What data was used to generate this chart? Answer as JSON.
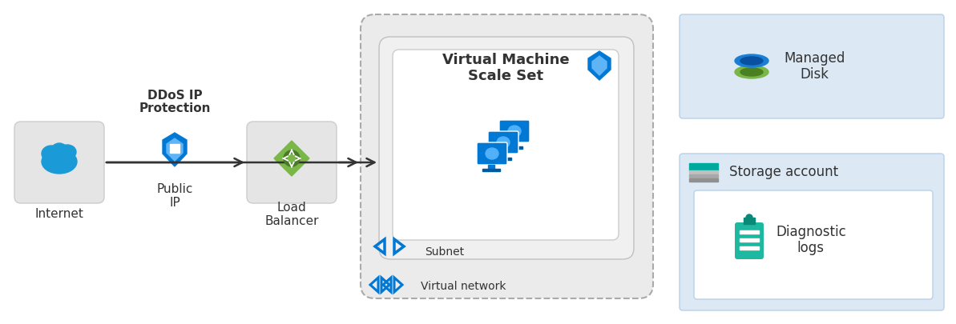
{
  "bg_color": "#ffffff",
  "light_blue_bg": "#dce9f5",
  "grey_box_color": "#e5e5e5",
  "vnet_fill": "#ebebeb",
  "subnet_fill": "#f0f0f0",
  "vmss_fill": "#ffffff",
  "arrow_color": "#333333",
  "text_color": "#333333",
  "dashed_border": "#aaaaaa",
  "blue_icon": "#1a9bd7",
  "ddos_blue": "#0078d4",
  "ddos_light": "#5eb4f5",
  "green_lb": "#7ab648",
  "green_lb_dark": "#4a7a28",
  "vm_blue": "#0078d4",
  "vm_light": "#50b0f8",
  "teal_diag": "#1eb8a0",
  "teal_diag_dark": "#0a8878",
  "managed_blue": "#1a7fd4",
  "managed_blue_dark": "#0a50a0",
  "managed_green": "#7ab648",
  "managed_green_dark": "#4a8020",
  "storage_teal": "#00a99d",
  "label_internet": "Internet",
  "label_ddos_line1": "DDoS IP",
  "label_ddos_line2": "Protection",
  "label_public_ip": "Public\nIP",
  "label_load_balancer": "Load\nBalancer",
  "label_vmss": "Virtual Machine\nScale Set",
  "label_subnet": "Subnet",
  "label_vnet": "Virtual network",
  "label_managed_disk": "Managed\nDisk",
  "label_storage": "Storage account",
  "label_diag": "Diagnostic\nlogs"
}
